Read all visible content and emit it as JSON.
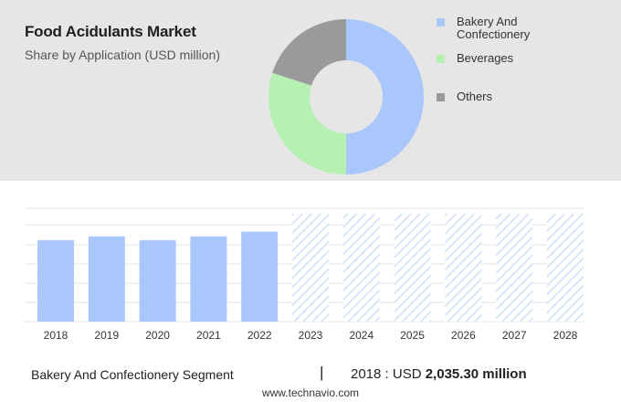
{
  "header": {
    "title": "Food Acidulants Market",
    "subtitle": "Share by Application (USD million)"
  },
  "colors": {
    "bakery": "#a9c7fa",
    "beverages": "#b6f0b3",
    "others": "#9a9a9a",
    "forecast_stripe": "#c6d6f5"
  },
  "chart_data": [
    {
      "type": "pie",
      "variant": "donut",
      "legend_position": "right",
      "labels": [
        "Bakery And Confectionery",
        "Beverages",
        "Others"
      ],
      "values": [
        50,
        30,
        20
      ]
    },
    {
      "type": "bar",
      "categories": [
        "2018",
        "2019",
        "2020",
        "2021",
        "2022",
        "2023",
        "2024",
        "2025",
        "2026",
        "2027",
        "2028"
      ],
      "values": [
        0.755,
        0.79,
        0.755,
        0.79,
        0.835,
        1.0,
        1.0,
        1.0,
        1.0,
        1.0,
        1.0
      ],
      "forecast_from": "2023",
      "forecast_style": "hatched",
      "grid": true,
      "y_axis_labels": false
    }
  ],
  "footer": {
    "segment_label": "Bakery And Confectionery Segment",
    "separator": "|",
    "year_text": "2018 : USD ",
    "value_text": "2,035.30 million",
    "source": "www.technavio.com"
  }
}
